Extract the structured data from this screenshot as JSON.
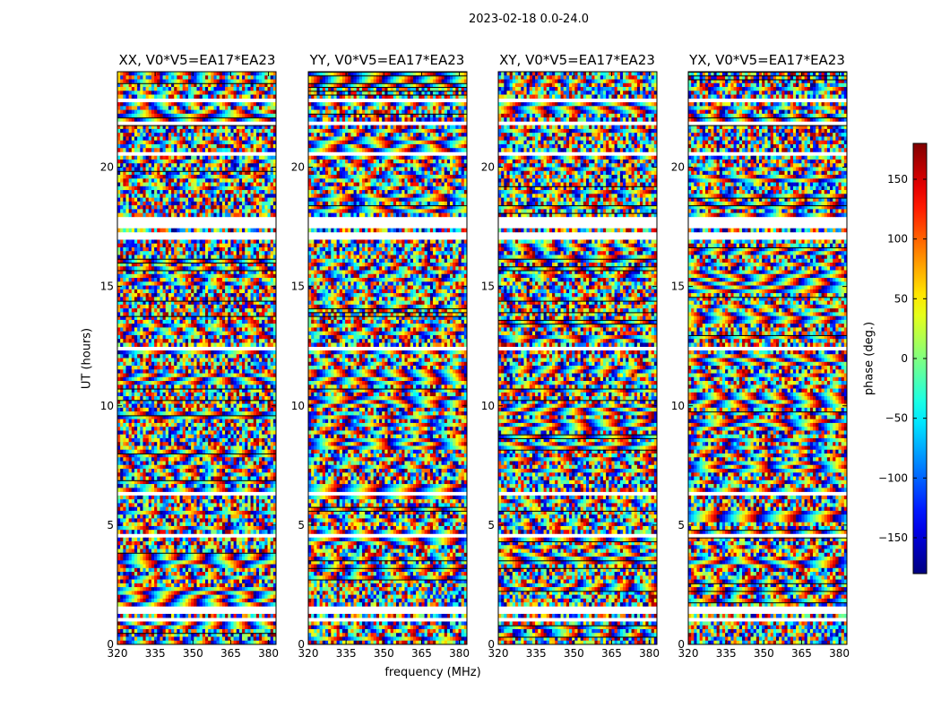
{
  "figure_title": "2023-02-18 0.0-24.0",
  "colormap": "jet",
  "chart_data": {
    "type": "heatmap",
    "title": "2023-02-18 0.0-24.0",
    "xlabel": "frequency (MHz)",
    "ylabel": "UT (hours)",
    "xlim": [
      320,
      383
    ],
    "ylim": [
      0,
      24
    ],
    "xticks": [
      320,
      335,
      350,
      365,
      380
    ],
    "yticks": [
      0,
      5,
      10,
      15,
      20
    ],
    "panels": [
      {
        "title": "XX, V0*V5=EA17*EA23",
        "polarization": "XX"
      },
      {
        "title": "YY, V0*V5=EA17*EA23",
        "polarization": "YY"
      },
      {
        "title": "XY, V0*V5=EA17*EA23",
        "polarization": "XY"
      },
      {
        "title": "YX, V0*V5=EA17*EA23",
        "polarization": "YX"
      }
    ],
    "colorbar": {
      "label": "phase (deg.)",
      "range": [
        -180,
        180
      ],
      "ticks": [
        -150,
        -100,
        -50,
        0,
        50,
        100,
        150
      ],
      "tick_labels": [
        "−150",
        "−100",
        "−50",
        "0",
        "50",
        "100",
        "150"
      ]
    },
    "flagged_time_bands_hours": [
      [
        0.25,
        0.4
      ],
      [
        1.0,
        1.1
      ],
      [
        1.3,
        1.55
      ],
      [
        4.5,
        4.7
      ],
      [
        6.3,
        6.4
      ],
      [
        12.3,
        12.45
      ],
      [
        16.9,
        17.2
      ],
      [
        17.4,
        17.9
      ],
      [
        20.5,
        20.7
      ],
      [
        21.8,
        21.9
      ],
      [
        22.7,
        22.8
      ],
      [
        23.3,
        23.4
      ]
    ]
  }
}
